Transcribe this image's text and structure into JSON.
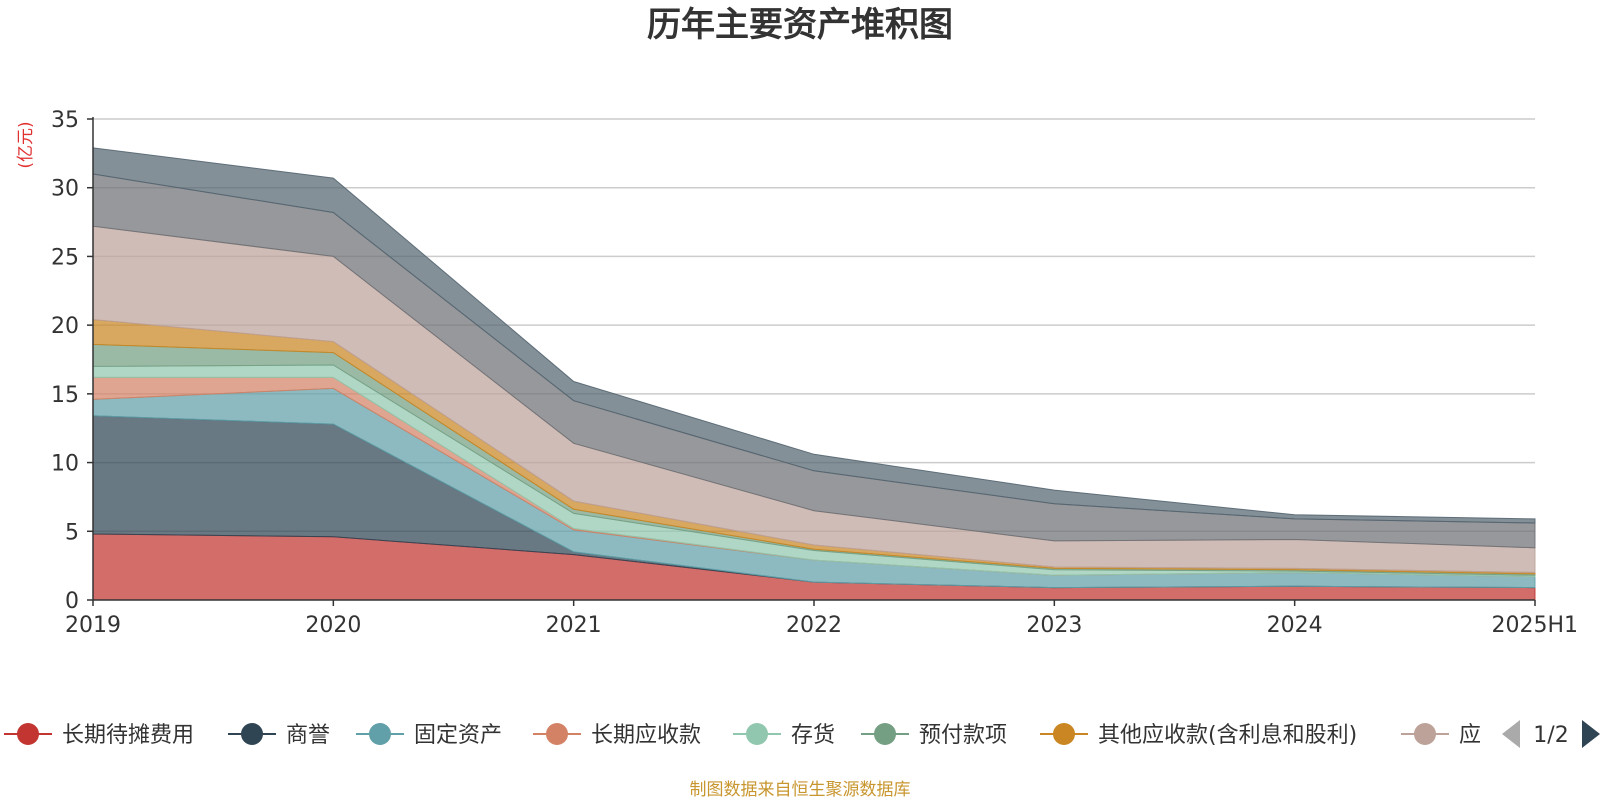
{
  "chart_data": {
    "type": "area",
    "stacked": true,
    "title": "历年主要资产堆积图",
    "ylabel": "(亿元)",
    "ylim": [
      0,
      35
    ],
    "yticks": [
      0,
      5,
      10,
      15,
      20,
      25,
      30,
      35
    ],
    "grid": true,
    "categories": [
      "2019",
      "2020",
      "2021",
      "2022",
      "2023",
      "2024",
      "2025H1"
    ],
    "series": [
      {
        "name": "长期待摊费用",
        "color": "#c23531",
        "values": [
          4.8,
          4.6,
          3.3,
          1.3,
          0.9,
          1.0,
          0.9
        ]
      },
      {
        "name": "商誉",
        "color": "#2f4554",
        "values": [
          8.6,
          8.2,
          0.2,
          0.0,
          0.0,
          0.0,
          0.0
        ]
      },
      {
        "name": "固定资产",
        "color": "#61a0a8",
        "values": [
          1.2,
          2.6,
          1.6,
          1.6,
          0.9,
          1.0,
          0.8
        ]
      },
      {
        "name": "长期应收款",
        "color": "#d48265",
        "values": [
          1.6,
          0.8,
          0.1,
          0.0,
          0.0,
          0.0,
          0.0
        ]
      },
      {
        "name": "存货",
        "color": "#91c7ae",
        "values": [
          0.8,
          0.9,
          1.1,
          0.7,
          0.4,
          0.1,
          0.1
        ]
      },
      {
        "name": "预付款项",
        "color": "#749f83",
        "values": [
          1.6,
          0.9,
          0.3,
          0.1,
          0.1,
          0.1,
          0.1
        ]
      },
      {
        "name": "其他应收款(含利息和股利)",
        "color": "#ca8622",
        "values": [
          1.8,
          0.8,
          0.6,
          0.3,
          0.1,
          0.1,
          0.1
        ]
      },
      {
        "name": "应",
        "color": "#bda29a",
        "values": [
          6.8,
          6.2,
          4.2,
          2.5,
          1.9,
          2.1,
          1.8
        ]
      },
      {
        "name": "",
        "color": "#6e7074",
        "values": [
          3.8,
          3.2,
          3.1,
          2.9,
          2.7,
          1.5,
          1.8
        ]
      },
      {
        "name": "",
        "color": "#546570",
        "values": [
          1.9,
          2.5,
          1.4,
          1.2,
          1.0,
          0.3,
          0.3
        ]
      }
    ],
    "legend": {
      "position": "bottom",
      "page": "1/2",
      "visible_count": 8
    },
    "source": "制图数据来自恒生聚源数据库"
  }
}
